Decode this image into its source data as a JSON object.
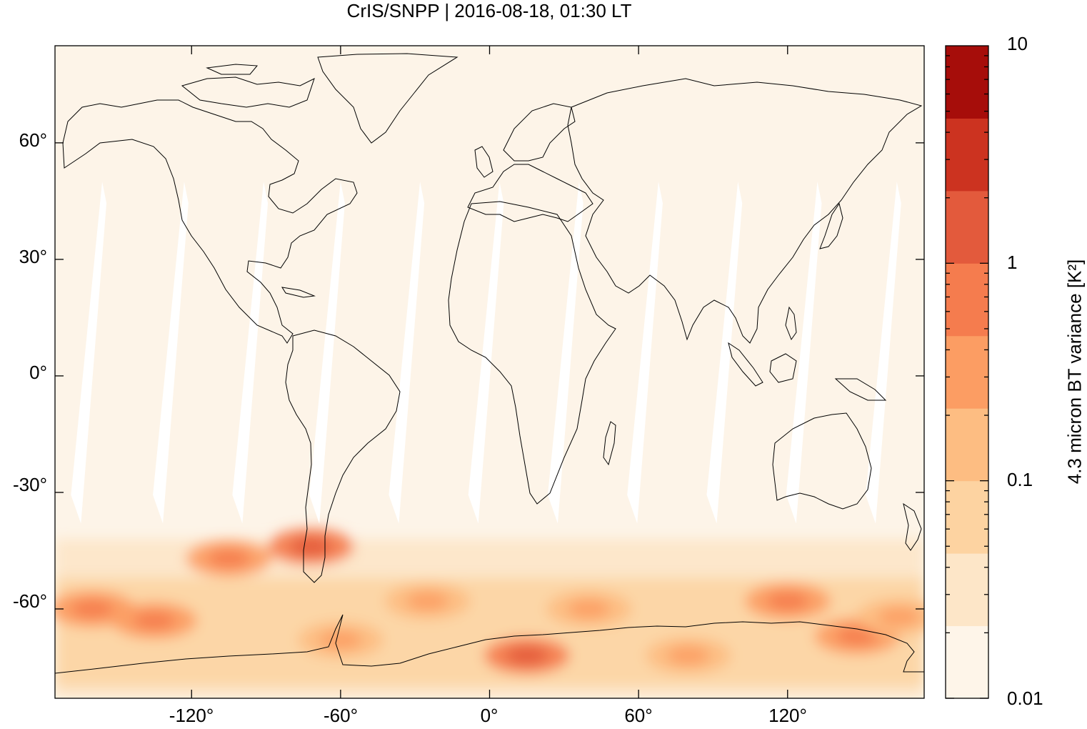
{
  "title": "CrIS/SNPP | 2016-08-18, 01:30 LT",
  "map": {
    "projection": "equirectangular",
    "lon_range": [
      -175,
      175
    ],
    "lat_range": [
      -83,
      85
    ],
    "background_color": "#fdf4e8",
    "coastline_color": "#000000",
    "x_ticks": [
      "-120°",
      "-60°",
      "0°",
      "60°",
      "120°"
    ],
    "x_tick_values": [
      -120,
      -60,
      0,
      60,
      120
    ],
    "y_ticks": [
      "60°",
      "30°",
      "0°",
      "-30°",
      "-60°"
    ],
    "y_tick_values": [
      60,
      30,
      0,
      -30,
      -60
    ]
  },
  "colorbar": {
    "title": "4.3 micron BT variance [K²]",
    "scale": "log",
    "range": [
      0.01,
      10
    ],
    "tick_labels": [
      "10",
      "1",
      "0.1",
      "0.01"
    ],
    "tick_values": [
      10,
      1,
      0.1,
      0.01
    ],
    "colors": [
      "#fef5e9",
      "#fde6c8",
      "#fdd3a1",
      "#fdbd82",
      "#fc9d63",
      "#f57c4e",
      "#e35a3c",
      "#cc3320",
      "#a60d0a"
    ]
  },
  "hotspots": [
    {
      "lon": -160,
      "lat": -60,
      "value": 0.6
    },
    {
      "lon": -135,
      "lat": -63,
      "value": 0.5
    },
    {
      "lon": -105,
      "lat": -47,
      "value": 0.8
    },
    {
      "lon": -72,
      "lat": -44,
      "value": 1.2
    },
    {
      "lon": -60,
      "lat": -68,
      "value": 0.4
    },
    {
      "lon": -25,
      "lat": -58,
      "value": 0.4
    },
    {
      "lon": 15,
      "lat": -72,
      "value": 1.1
    },
    {
      "lon": 40,
      "lat": -60,
      "value": 0.4
    },
    {
      "lon": 80,
      "lat": -72,
      "value": 0.4
    },
    {
      "lon": 120,
      "lat": -58,
      "value": 0.6
    },
    {
      "lon": 148,
      "lat": -67,
      "value": 0.8
    },
    {
      "lon": 165,
      "lat": -62,
      "value": 0.4
    }
  ]
}
